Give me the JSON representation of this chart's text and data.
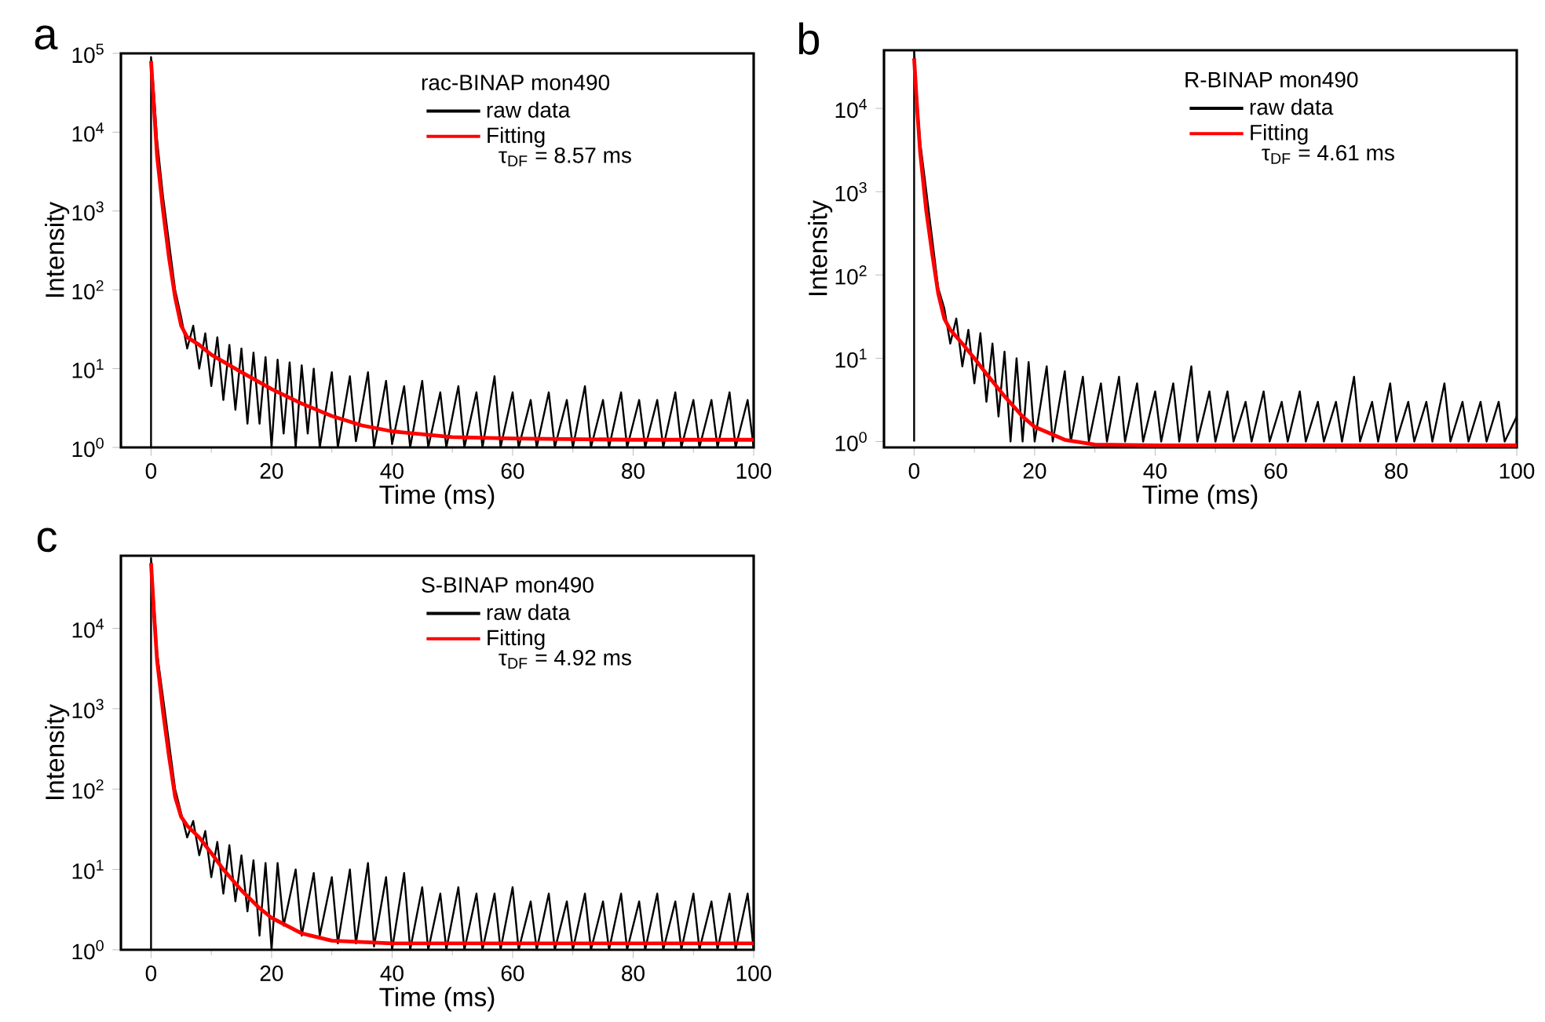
{
  "chart_data": [
    {
      "type": "line",
      "title": "a",
      "legend_title": "rac-BINAP mon490",
      "annotations": [
        "τ$_{DF}$ = 8.57 ms"
      ],
      "xlabel": "Time (ms)",
      "ylabel": "Intensity",
      "log": "y",
      "legend": "top right",
      "xlim": [
        -5,
        100
      ],
      "ylim": [
        1,
        100000
      ],
      "xticks": [
        0,
        20,
        40,
        60,
        80,
        100
      ],
      "yticks": [
        {
          "value": 1,
          "label": "10$^{0}$"
        },
        {
          "value": 10,
          "label": "10$^{1}$"
        },
        {
          "value": 100,
          "label": "10$^{2}$"
        },
        {
          "value": 1000,
          "label": "10$^{3}$"
        },
        {
          "value": 10000,
          "label": "10$^{4}$"
        },
        {
          "value": 100000,
          "label": "10$^{5}$"
        }
      ],
      "series": [
        {
          "name": "raw data",
          "color": "#000000",
          "x": [
            0,
            0,
            0.5,
            1,
            2,
            3,
            4,
            5,
            6,
            7,
            8,
            9,
            10,
            11,
            12,
            13,
            14,
            15,
            16,
            17,
            18,
            19,
            20,
            21,
            22,
            23,
            24,
            25,
            26,
            27,
            28,
            30,
            31,
            33,
            34,
            36,
            37,
            39,
            40,
            42,
            43,
            45,
            46,
            48,
            49,
            51,
            52,
            54,
            55,
            57,
            58,
            60,
            61,
            63,
            64,
            66,
            67,
            69,
            70,
            72,
            73,
            75,
            76,
            78,
            79,
            81,
            82,
            84,
            85,
            87,
            88,
            90,
            91,
            93,
            94,
            96,
            97,
            99,
            100
          ],
          "values": [
            1,
            90000,
            30000,
            8000,
            1500,
            null,
            100,
            45,
            18,
            35,
            10,
            28,
            6,
            25,
            4,
            20,
            3,
            18,
            2,
            16,
            2,
            14,
            1,
            13,
            1.5,
            12,
            1,
            11,
            1.5,
            10,
            1,
            9,
            1,
            8,
            1.2,
            9,
            1,
            7,
            1.1,
            6,
            1,
            7,
            1,
            5,
            1,
            6,
            1,
            5,
            1,
            8,
            1,
            5,
            1,
            4,
            1,
            5,
            1,
            4,
            1,
            6,
            1,
            4,
            1,
            5,
            1,
            4,
            1,
            4,
            1,
            5,
            1,
            4,
            1,
            4,
            1,
            5,
            1,
            4,
            1
          ]
        },
        {
          "name": "Fitting",
          "color": "#ff0000",
          "x": [
            0,
            0.5,
            1,
            2,
            3,
            4,
            5,
            6,
            8,
            10,
            15,
            20,
            25,
            30,
            35,
            40,
            50,
            60,
            80,
            100
          ],
          "values": [
            80000,
            20000,
            5000,
            1000,
            250,
            80,
            35,
            25,
            20,
            15,
            9,
            5.5,
            3.6,
            2.5,
            1.9,
            1.6,
            1.35,
            1.3,
            1.25,
            1.25
          ]
        }
      ]
    },
    {
      "type": "line",
      "title": "b",
      "legend_title": "R-BINAP mon490",
      "annotations": [
        "τ$_{DF}$ = 4.61 ms"
      ],
      "xlabel": "Time (ms)",
      "ylabel": "Intensity",
      "log": "y",
      "legend": "top right",
      "xlim": [
        -5,
        100
      ],
      "ylim": [
        0.85,
        50000
      ],
      "xticks": [
        0,
        20,
        40,
        60,
        80,
        100
      ],
      "yticks": [
        {
          "value": 1,
          "label": "10$^{0}$"
        },
        {
          "value": 10,
          "label": "10$^{1}$"
        },
        {
          "value": 100,
          "label": "10$^{2}$"
        },
        {
          "value": 1000,
          "label": "10$^{3}$"
        },
        {
          "value": 10000,
          "label": "10$^{4}$"
        }
      ],
      "series": [
        {
          "name": "raw data",
          "color": "#000000",
          "x": [
            0,
            0,
            0.5,
            1,
            2,
            3,
            4,
            5,
            6,
            7,
            8,
            9,
            10,
            11,
            12,
            13,
            14,
            15,
            16,
            17,
            18,
            19,
            20,
            22,
            23,
            25,
            26,
            28,
            29,
            31,
            32,
            34,
            35,
            37,
            38,
            40,
            41,
            43,
            44,
            46,
            47,
            49,
            50,
            52,
            53,
            55,
            56,
            58,
            59,
            61,
            62,
            64,
            65,
            67,
            68,
            70,
            71,
            73,
            74,
            76,
            77,
            79,
            80,
            82,
            83,
            85,
            86,
            88,
            89,
            91,
            92,
            94,
            95,
            97,
            98,
            100
          ],
          "values": [
            1,
            50000,
            12000,
            4000,
            null,
            null,
            70,
            40,
            15,
            30,
            8,
            22,
            5,
            20,
            3,
            15,
            2,
            12,
            1,
            10,
            1,
            9,
            1,
            8,
            1,
            7,
            1,
            6,
            1,
            5,
            1,
            6,
            1,
            5,
            1,
            4,
            1,
            5,
            1,
            8,
            1,
            4,
            1,
            4,
            1,
            3,
            1,
            4,
            1,
            3,
            1,
            4,
            1,
            3,
            1,
            3,
            1,
            6,
            1,
            3,
            1,
            5,
            1,
            3,
            1,
            3,
            1,
            5,
            1,
            3,
            1,
            3,
            1,
            3,
            1,
            2
          ]
        },
        {
          "name": "Fitting",
          "color": "#ff0000",
          "x": [
            0,
            0.5,
            1,
            2,
            3,
            4,
            5,
            6,
            8,
            10,
            12,
            15,
            18,
            20,
            25,
            30,
            40,
            100
          ],
          "values": [
            40000,
            10000,
            3000,
            600,
            180,
            60,
            30,
            22,
            15,
            10,
            6.5,
            3.5,
            2,
            1.5,
            1.05,
            0.92,
            0.9,
            0.9
          ]
        }
      ]
    },
    {
      "type": "line",
      "title": "c",
      "legend_title": "S-BINAP mon490",
      "annotations": [
        "τ$_{DF}$ = 4.92 ms"
      ],
      "xlabel": "Time (ms)",
      "ylabel": "Intensity",
      "log": "y",
      "legend": "top right",
      "xlim": [
        -5,
        100
      ],
      "ylim": [
        1,
        80000
      ],
      "xticks": [
        0,
        20,
        40,
        60,
        80,
        100
      ],
      "yticks": [
        {
          "value": 1,
          "label": "10$^{0}$"
        },
        {
          "value": 10,
          "label": "10$^{1}$"
        },
        {
          "value": 100,
          "label": "10$^{2}$"
        },
        {
          "value": 1000,
          "label": "10$^{3}$"
        },
        {
          "value": 10000,
          "label": "10$^{4}$"
        }
      ],
      "series": [
        {
          "name": "raw data",
          "color": "#000000",
          "x": [
            0,
            0,
            0.5,
            1,
            2,
            3,
            4,
            5,
            6,
            7,
            8,
            9,
            10,
            11,
            12,
            13,
            14,
            15,
            16,
            17,
            18,
            19,
            20,
            21,
            22,
            24,
            25,
            27,
            28,
            30,
            31,
            33,
            34,
            36,
            37,
            39,
            40,
            42,
            43,
            45,
            46,
            48,
            49,
            51,
            52,
            54,
            55,
            57,
            58,
            60,
            61,
            63,
            64,
            66,
            67,
            69,
            70,
            72,
            73,
            75,
            76,
            78,
            79,
            81,
            82,
            84,
            85,
            87,
            88,
            90,
            91,
            93,
            94,
            96,
            97,
            99,
            100
          ],
          "values": [
            1,
            75000,
            20000,
            5000,
            null,
            null,
            100,
            null,
            25,
            40,
            15,
            30,
            8,
            22,
            5,
            20,
            4,
            15,
            3,
            13,
            1.5,
            12,
            1,
            12,
            2,
            10,
            1.5,
            9,
            1.5,
            8,
            1.2,
            10,
            1.2,
            12,
            1.1,
            8,
            1,
            9,
            1,
            6,
            1,
            5,
            1,
            6,
            1,
            5,
            1,
            5,
            1,
            6,
            1,
            4,
            1,
            5,
            1,
            4,
            1,
            5,
            1,
            4,
            1,
            5,
            1,
            4,
            1,
            5,
            1,
            4,
            1,
            5,
            1,
            4,
            1,
            5,
            1,
            5,
            1
          ]
        },
        {
          "name": "Fitting",
          "color": "#ff0000",
          "x": [
            0,
            0.5,
            1,
            2,
            3,
            4,
            5,
            6,
            8,
            10,
            12,
            15,
            18,
            20,
            25,
            30,
            40,
            100
          ],
          "values": [
            65000,
            15000,
            4000,
            900,
            250,
            80,
            45,
            35,
            25,
            16,
            10,
            5.5,
            3.3,
            2.5,
            1.6,
            1.3,
            1.2,
            1.2
          ]
        }
      ]
    }
  ]
}
